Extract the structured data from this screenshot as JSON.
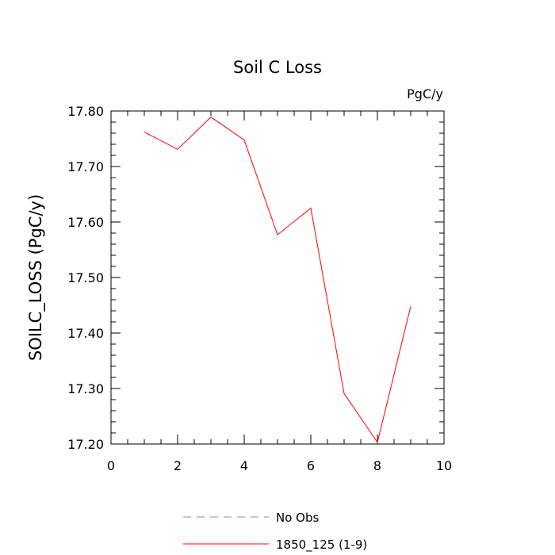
{
  "chart_data": {
    "type": "line",
    "title": "Soil C Loss",
    "units_label": "PgC/y",
    "ylabel": "SOILC_LOSS  (PgC/y)",
    "xlabel": "",
    "xlim": [
      0,
      10
    ],
    "ylim": [
      17.2,
      17.8
    ],
    "x_ticks": [
      "0",
      "2",
      "4",
      "6",
      "8",
      "10"
    ],
    "y_ticks": [
      "17.20",
      "17.30",
      "17.40",
      "17.50",
      "17.60",
      "17.70",
      "17.80"
    ],
    "grid": false,
    "legend_placement": "bottom",
    "series": [
      {
        "name": "1850_125 (1-9)",
        "color": "#ff0000",
        "style": "solid",
        "x": [
          1,
          2,
          3,
          4,
          5,
          6,
          7,
          8,
          9
        ],
        "y": [
          17.762,
          17.731,
          17.789,
          17.748,
          17.577,
          17.625,
          17.291,
          17.203,
          17.448
        ]
      }
    ],
    "legend": [
      {
        "name": "No Obs",
        "color": "#8080ff",
        "style": "dashed"
      },
      {
        "name": "1850_125 (1-9)",
        "color": "#ff0000",
        "style": "solid"
      }
    ]
  }
}
